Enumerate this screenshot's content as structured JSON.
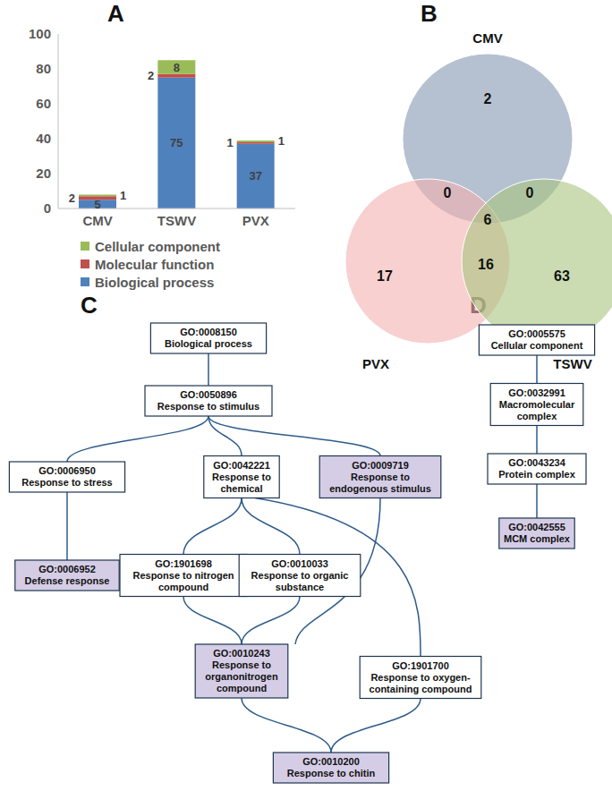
{
  "panel_labels": [
    "A",
    "B",
    "C",
    "D"
  ],
  "chart_data": {
    "type": "bar",
    "stacked": true,
    "categories": [
      "CMV",
      "TSWV",
      "PVX"
    ],
    "series": [
      {
        "name": "Biological process",
        "color": "#4f81bd",
        "values": [
          5,
          75,
          37
        ]
      },
      {
        "name": "Molecular function",
        "color": "#c0504d",
        "values": [
          2,
          2,
          1
        ]
      },
      {
        "name": "Cellular component",
        "color": "#9bbb59",
        "values": [
          1,
          8,
          1
        ]
      }
    ],
    "ylim": [
      0,
      100
    ],
    "yticks": [
      0,
      20,
      40,
      60,
      80,
      100
    ],
    "grid": false,
    "legend": "bottom",
    "data_labels": true
  },
  "venn": {
    "sets": [
      {
        "name": "CMV",
        "color": "#8497b0"
      },
      {
        "name": "PVX",
        "color": "#f4b0b0"
      },
      {
        "name": "TSWV",
        "color": "#a9c47f"
      }
    ],
    "regions": [
      {
        "sets": [
          "CMV"
        ],
        "value": 2
      },
      {
        "sets": [
          "CMV",
          "PVX"
        ],
        "value": 0
      },
      {
        "sets": [
          "CMV",
          "TSWV"
        ],
        "value": 0
      },
      {
        "sets": [
          "CMV",
          "PVX",
          "TSWV"
        ],
        "value": 6
      },
      {
        "sets": [
          "PVX"
        ],
        "value": 17
      },
      {
        "sets": [
          "PVX",
          "TSWV"
        ],
        "value": 16
      },
      {
        "sets": [
          "TSWV"
        ],
        "value": 63
      }
    ]
  },
  "go_c": {
    "nodes": [
      {
        "id": "GO:0008150",
        "label": [
          "Biological process"
        ],
        "highlighted": false
      },
      {
        "id": "GO:0050896",
        "label": [
          "Response to stimulus"
        ],
        "highlighted": false
      },
      {
        "id": "GO:0006950",
        "label": [
          "Response to stress"
        ],
        "highlighted": false
      },
      {
        "id": "GO:0042221",
        "label": [
          "Response to",
          "chemical"
        ],
        "highlighted": false
      },
      {
        "id": "GO:0009719",
        "label": [
          "Response to",
          "endogenous stimulus"
        ],
        "highlighted": true
      },
      {
        "id": "GO:0006952",
        "label": [
          "Defense response"
        ],
        "highlighted": true
      },
      {
        "id": "GO:1901698",
        "label": [
          "Response to nitrogen",
          "compound"
        ],
        "highlighted": false
      },
      {
        "id": "GO:0010033",
        "label": [
          "Response to organic",
          "substance"
        ],
        "highlighted": false
      },
      {
        "id": "GO:0010243",
        "label": [
          "Response to",
          "organonitrogen",
          "compound"
        ],
        "highlighted": true
      },
      {
        "id": "GO:1901700",
        "label": [
          "Response to oxygen-",
          "containing compound"
        ],
        "highlighted": false
      },
      {
        "id": "GO:0010200",
        "label": [
          "Response to chitin"
        ],
        "highlighted": true
      }
    ],
    "edges": [
      [
        0,
        1
      ],
      [
        1,
        2
      ],
      [
        1,
        3
      ],
      [
        1,
        4
      ],
      [
        2,
        5
      ],
      [
        3,
        6
      ],
      [
        3,
        7
      ],
      [
        3,
        9
      ],
      [
        6,
        8
      ],
      [
        7,
        8
      ],
      [
        4,
        8
      ],
      [
        8,
        10
      ],
      [
        9,
        10
      ]
    ]
  },
  "go_d": {
    "nodes": [
      {
        "id": "GO:0005575",
        "label": [
          "Cellular component"
        ],
        "highlighted": false
      },
      {
        "id": "GO:0032991",
        "label": [
          "Macromolecular",
          "complex"
        ],
        "highlighted": false
      },
      {
        "id": "GO:0043234",
        "label": [
          "Protein complex"
        ],
        "highlighted": false
      },
      {
        "id": "GO:0042555",
        "label": [
          "MCM complex"
        ],
        "highlighted": true
      }
    ],
    "edges": [
      [
        0,
        1
      ],
      [
        1,
        2
      ],
      [
        2,
        3
      ]
    ]
  }
}
